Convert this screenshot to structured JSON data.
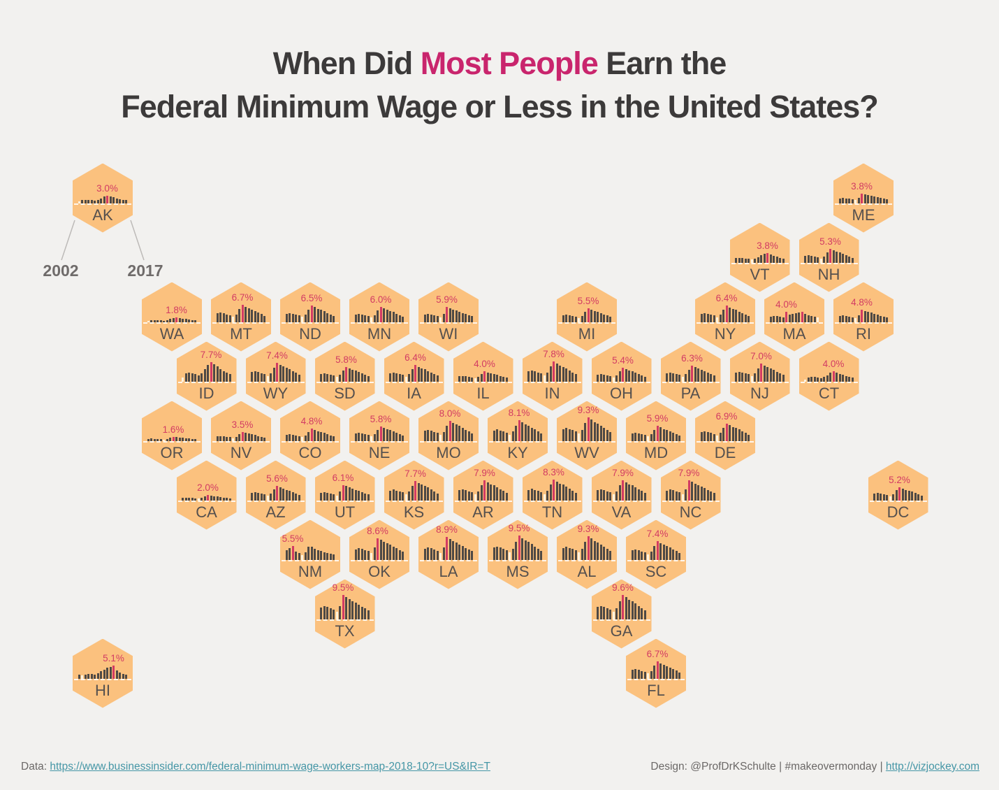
{
  "title": {
    "prefix": "When Did ",
    "highlight": "Most People",
    "suffix": " Earn the",
    "line2": "Federal Minimum Wage or Less in the United States?"
  },
  "annotations": {
    "start_year": "2002",
    "end_year": "2017"
  },
  "footer": {
    "data_label": "Data: ",
    "data_url": "https://www.businessinsider.com/federal-minimum-wage-workers-map-2018-10?r=US&IR=T",
    "design_text": "Design: @ProfDrKSchulte | #makeovermonday | ",
    "design_url": "http://vizjockey.com"
  },
  "colors": {
    "background": "#f2f1ef",
    "hex_fill": "#fbc17e",
    "bar": "#4e4945",
    "bar_peak": "#d23b63",
    "bar_min": "#fdf3e0",
    "title_accent": "#c9256d",
    "title_text": "#3c3a3a",
    "link": "#4596a6"
  },
  "chart_data": {
    "type": "bar",
    "title": "When Did Most People Earn the Federal Minimum Wage or Less in the United States?",
    "subtitle_note": "hex tile map of small-multiple bar charts, one bar per year",
    "years": [
      2002,
      2003,
      2004,
      2005,
      2006,
      2007,
      2008,
      2009,
      2010,
      2011,
      2012,
      2013,
      2014,
      2015,
      2016,
      2017
    ],
    "value_meaning": "peak share of workers earning federal minimum wage or less; labeled on each state at its peak year (pink bar)",
    "profiles": {
      "p7": [
        48,
        54,
        50,
        45,
        40,
        30,
        55,
        100,
        92,
        84,
        76,
        68,
        60,
        52,
        45,
        38
      ],
      "p8": [
        50,
        55,
        50,
        45,
        40,
        30,
        45,
        75,
        100,
        90,
        80,
        74,
        65,
        55,
        46,
        36
      ],
      "p9": [
        20,
        40,
        45,
        42,
        38,
        30,
        42,
        62,
        84,
        100,
        88,
        76,
        64,
        54,
        45,
        38
      ],
      "p10": [
        45,
        50,
        46,
        42,
        38,
        30,
        40,
        58,
        75,
        88,
        100,
        85,
        72,
        60,
        50,
        42
      ],
      "p11": [
        30,
        26,
        30,
        34,
        34,
        28,
        42,
        56,
        70,
        82,
        92,
        100,
        60,
        44,
        38,
        32
      ],
      "nm": [
        70,
        85,
        100,
        60,
        50,
        35,
        52,
        92,
        95,
        80,
        70,
        62,
        55,
        50,
        45,
        40
      ],
      "ma": [
        55,
        62,
        56,
        50,
        45,
        100,
        70,
        78,
        84,
        92,
        100,
        80,
        68,
        58,
        50,
        44
      ]
    },
    "profile_note": "bars are relative heights (percent of state peak); actual bar value = state value * height/100",
    "states": [
      {
        "abbr": "AK",
        "value": 3.0,
        "label": "3.0%",
        "profile": "p9",
        "col": 0,
        "row": 0
      },
      {
        "abbr": "ME",
        "value": 3.8,
        "label": "3.8%",
        "profile": "p7",
        "col": 22,
        "row": 0
      },
      {
        "abbr": "VT",
        "value": 3.8,
        "label": "3.8%",
        "profile": "p10",
        "col": 19,
        "row": 1
      },
      {
        "abbr": "NH",
        "value": 5.3,
        "label": "5.3%",
        "profile": "p8",
        "col": 21,
        "row": 1
      },
      {
        "abbr": "WA",
        "value": 1.8,
        "label": "1.8%",
        "profile": "p9",
        "col": 2,
        "row": 2
      },
      {
        "abbr": "MT",
        "value": 6.7,
        "label": "6.7%",
        "profile": "p8",
        "col": 4,
        "row": 2
      },
      {
        "abbr": "ND",
        "value": 6.5,
        "label": "6.5%",
        "profile": "p8",
        "col": 6,
        "row": 2
      },
      {
        "abbr": "MN",
        "value": 6.0,
        "label": "6.0%",
        "profile": "p8",
        "col": 8,
        "row": 2
      },
      {
        "abbr": "WI",
        "value": 5.9,
        "label": "5.9%",
        "profile": "p7",
        "col": 10,
        "row": 2
      },
      {
        "abbr": "MI",
        "value": 5.5,
        "label": "5.5%",
        "profile": "p8",
        "col": 14,
        "row": 2
      },
      {
        "abbr": "NY",
        "value": 6.4,
        "label": "6.4%",
        "profile": "p8",
        "col": 18,
        "row": 2
      },
      {
        "abbr": "MA",
        "value": 4.0,
        "label": "4.0%",
        "profile": "ma",
        "col": 20,
        "row": 2
      },
      {
        "abbr": "RI",
        "value": 4.8,
        "label": "4.8%",
        "profile": "p7",
        "col": 22,
        "row": 2
      },
      {
        "abbr": "ID",
        "value": 7.7,
        "label": "7.7%",
        "profile": "p9",
        "col": 3,
        "row": 3
      },
      {
        "abbr": "WY",
        "value": 7.4,
        "label": "7.4%",
        "profile": "p8",
        "col": 5,
        "row": 3
      },
      {
        "abbr": "SD",
        "value": 5.8,
        "label": "5.8%",
        "profile": "p8",
        "col": 7,
        "row": 3
      },
      {
        "abbr": "IA",
        "value": 6.4,
        "label": "6.4%",
        "profile": "p8",
        "col": 9,
        "row": 3
      },
      {
        "abbr": "IL",
        "value": 4.0,
        "label": "4.0%",
        "profile": "p8",
        "col": 11,
        "row": 3
      },
      {
        "abbr": "IN",
        "value": 7.8,
        "label": "7.8%",
        "profile": "p8",
        "col": 13,
        "row": 3
      },
      {
        "abbr": "OH",
        "value": 5.4,
        "label": "5.4%",
        "profile": "p8",
        "col": 15,
        "row": 3
      },
      {
        "abbr": "PA",
        "value": 6.3,
        "label": "6.3%",
        "profile": "p8",
        "col": 17,
        "row": 3
      },
      {
        "abbr": "NJ",
        "value": 7.0,
        "label": "7.0%",
        "profile": "p8",
        "col": 19,
        "row": 3
      },
      {
        "abbr": "CT",
        "value": 4.0,
        "label": "4.0%",
        "profile": "p9",
        "col": 21,
        "row": 3
      },
      {
        "abbr": "OR",
        "value": 1.6,
        "label": "1.6%",
        "profile": "p8",
        "col": 2,
        "row": 4
      },
      {
        "abbr": "NV",
        "value": 3.5,
        "label": "3.5%",
        "profile": "p8",
        "col": 4,
        "row": 4
      },
      {
        "abbr": "CO",
        "value": 4.8,
        "label": "4.8%",
        "profile": "p8",
        "col": 6,
        "row": 4
      },
      {
        "abbr": "NE",
        "value": 5.8,
        "label": "5.8%",
        "profile": "p8",
        "col": 8,
        "row": 4
      },
      {
        "abbr": "MO",
        "value": 8.0,
        "label": "8.0%",
        "profile": "p8",
        "col": 10,
        "row": 4
      },
      {
        "abbr": "KY",
        "value": 8.1,
        "label": "8.1%",
        "profile": "p8",
        "col": 12,
        "row": 4
      },
      {
        "abbr": "WV",
        "value": 9.3,
        "label": "9.3%",
        "profile": "p8",
        "col": 14,
        "row": 4
      },
      {
        "abbr": "MD",
        "value": 5.9,
        "label": "5.9%",
        "profile": "p8",
        "col": 16,
        "row": 4
      },
      {
        "abbr": "DE",
        "value": 6.9,
        "label": "6.9%",
        "profile": "p8",
        "col": 18,
        "row": 4
      },
      {
        "abbr": "CA",
        "value": 2.0,
        "label": "2.0%",
        "profile": "p8",
        "col": 3,
        "row": 5
      },
      {
        "abbr": "AZ",
        "value": 5.6,
        "label": "5.6%",
        "profile": "p8",
        "col": 5,
        "row": 5
      },
      {
        "abbr": "UT",
        "value": 6.1,
        "label": "6.1%",
        "profile": "p7",
        "col": 7,
        "row": 5
      },
      {
        "abbr": "KS",
        "value": 7.7,
        "label": "7.7%",
        "profile": "p8",
        "col": 9,
        "row": 5
      },
      {
        "abbr": "AR",
        "value": 7.9,
        "label": "7.9%",
        "profile": "p8",
        "col": 11,
        "row": 5
      },
      {
        "abbr": "TN",
        "value": 8.3,
        "label": "8.3%",
        "profile": "p8",
        "col": 13,
        "row": 5
      },
      {
        "abbr": "VA",
        "value": 7.9,
        "label": "7.9%",
        "profile": "p8",
        "col": 15,
        "row": 5
      },
      {
        "abbr": "NC",
        "value": 7.9,
        "label": "7.9%",
        "profile": "p7",
        "col": 17,
        "row": 5
      },
      {
        "abbr": "DC",
        "value": 5.2,
        "label": "5.2%",
        "profile": "p8",
        "col": 23,
        "row": 5
      },
      {
        "abbr": "NM",
        "value": 5.5,
        "label": "5.5%",
        "profile": "nm",
        "col": 6,
        "row": 6
      },
      {
        "abbr": "OK",
        "value": 8.6,
        "label": "8.6%",
        "profile": "p7",
        "col": 8,
        "row": 6
      },
      {
        "abbr": "LA",
        "value": 8.9,
        "label": "8.9%",
        "profile": "p7",
        "col": 10,
        "row": 6
      },
      {
        "abbr": "MS",
        "value": 9.5,
        "label": "9.5%",
        "profile": "p8",
        "col": 12,
        "row": 6
      },
      {
        "abbr": "AL",
        "value": 9.3,
        "label": "9.3%",
        "profile": "p8",
        "col": 14,
        "row": 6
      },
      {
        "abbr": "SC",
        "value": 7.4,
        "label": "7.4%",
        "profile": "p8",
        "col": 16,
        "row": 6
      },
      {
        "abbr": "TX",
        "value": 9.5,
        "label": "9.5%",
        "profile": "p7",
        "col": 7,
        "row": 7
      },
      {
        "abbr": "GA",
        "value": 9.6,
        "label": "9.6%",
        "profile": "p8",
        "col": 15,
        "row": 7
      },
      {
        "abbr": "HI",
        "value": 5.1,
        "label": "5.1%",
        "profile": "p11",
        "col": 0,
        "row": 8
      },
      {
        "abbr": "FL",
        "value": 6.7,
        "label": "6.7%",
        "profile": "p8",
        "col": 16,
        "row": 8
      }
    ]
  }
}
